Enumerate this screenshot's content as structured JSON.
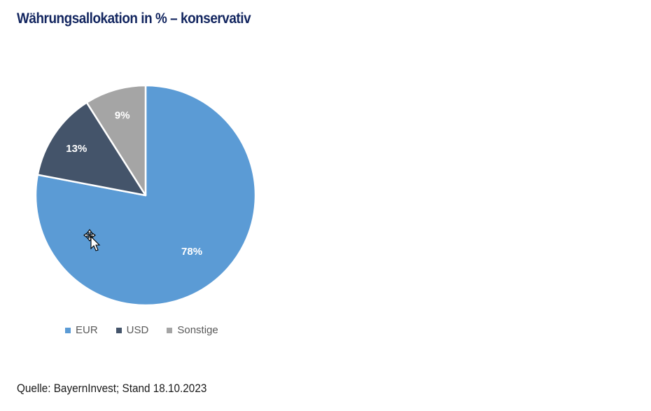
{
  "title": "Währungsallokation in % – konservativ",
  "source": "Quelle: BayernInvest; Stand 18.10.2023",
  "chart_data": {
    "type": "pie",
    "slices": [
      {
        "name": "EUR",
        "value": 78,
        "label": "78%",
        "color": "#5b9bd5"
      },
      {
        "name": "USD",
        "value": 13,
        "label": "13%",
        "color": "#44546a"
      },
      {
        "name": "Sonstige",
        "value": 9,
        "label": "9%",
        "color": "#a5a5a5"
      }
    ],
    "start": "12 o'clock",
    "direction": "clockwise",
    "legend_position": "bottom"
  },
  "icons": {
    "cursor": "move-cursor-icon"
  }
}
